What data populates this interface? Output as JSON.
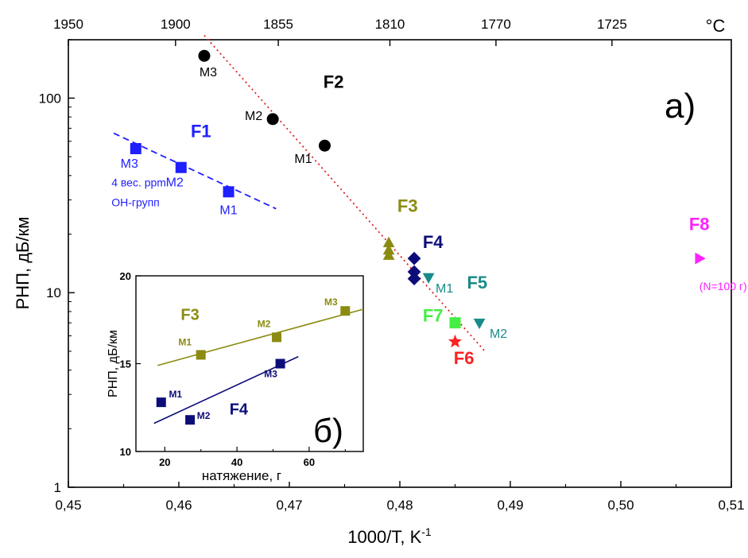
{
  "chart_data": {
    "type": "scatter",
    "panel_label": "а)",
    "xlabel": "1000/T, K",
    "xlabel_sup": "-1",
    "ylabel": "РНП, дБ/км",
    "xlim": [
      0.45,
      0.51
    ],
    "ylim": [
      1,
      200
    ],
    "yscale": "log",
    "x_ticks": [
      "0,45",
      "0,46",
      "0,47",
      "0,48",
      "0,49",
      "0,50",
      "0,51"
    ],
    "y_ticks": [
      "1",
      "10",
      "100"
    ],
    "top_axis": {
      "unit": "°C",
      "ticks": [
        {
          "label": "1950",
          "x": 0.45
        },
        {
          "label": "1900",
          "x": 0.4597
        },
        {
          "label": "1855",
          "x": 0.469
        },
        {
          "label": "1810",
          "x": 0.4791
        },
        {
          "label": "1770",
          "x": 0.4887
        },
        {
          "label": "1725",
          "x": 0.4992
        }
      ]
    },
    "series": [
      {
        "name": "F1",
        "marker": "square",
        "color": "#1f1fff",
        "points": [
          {
            "x": 0.4561,
            "y": 55,
            "label": "M3"
          },
          {
            "x": 0.4602,
            "y": 44,
            "label": "M2"
          },
          {
            "x": 0.4645,
            "y": 33,
            "label": "M1"
          }
        ]
      },
      {
        "name": "F2",
        "marker": "circle",
        "color": "#000000",
        "points": [
          {
            "x": 0.4623,
            "y": 165,
            "label": "M3"
          },
          {
            "x": 0.4685,
            "y": 78,
            "label": "M2"
          },
          {
            "x": 0.4732,
            "y": 57,
            "label": "M1"
          }
        ]
      },
      {
        "name": "F3",
        "marker": "triangle-up",
        "color": "#8b8b12",
        "points": [
          {
            "x": 0.479,
            "y": 18
          },
          {
            "x": 0.479,
            "y": 16.5
          },
          {
            "x": 0.479,
            "y": 15.5
          }
        ]
      },
      {
        "name": "F4",
        "marker": "diamond",
        "color": "#0d0d7a",
        "points": [
          {
            "x": 0.4813,
            "y": 15
          },
          {
            "x": 0.4813,
            "y": 12.8
          },
          {
            "x": 0.4813,
            "y": 11.8
          }
        ]
      },
      {
        "name": "F5",
        "marker": "triangle-down",
        "color": "#1a8a8a",
        "points": [
          {
            "x": 0.4826,
            "y": 12,
            "label": "M1"
          },
          {
            "x": 0.4872,
            "y": 7,
            "label": "M2"
          }
        ]
      },
      {
        "name": "F6",
        "marker": "star",
        "color": "#ff2020",
        "points": [
          {
            "x": 0.485,
            "y": 5.6
          }
        ]
      },
      {
        "name": "F7",
        "marker": "square",
        "color": "#44ee44",
        "points": [
          {
            "x": 0.485,
            "y": 7
          }
        ]
      },
      {
        "name": "F8",
        "marker": "triangle-right",
        "color": "#ff20ff",
        "points": [
          {
            "x": 0.5071,
            "y": 15
          }
        ]
      }
    ],
    "fit_lines": [
      {
        "name": "F2-fit",
        "style": "dotted",
        "color": "#dd2020",
        "from": {
          "x": 0.4623,
          "y": 210
        },
        "to": {
          "x": 0.4877,
          "y": 5.0
        }
      },
      {
        "name": "F1-fit",
        "style": "dashed",
        "color": "#1f1fff",
        "from": {
          "x": 0.4541,
          "y": 66
        },
        "to": {
          "x": 0.4688,
          "y": 27
        }
      }
    ],
    "series_labels": [
      {
        "text": "F1",
        "x": 0.462,
        "y": 63,
        "color": "#1f1fff"
      },
      {
        "text": "F2",
        "x": 0.474,
        "y": 113,
        "color": "#000000"
      },
      {
        "text": "F3",
        "x": 0.4807,
        "y": 26,
        "color": "#8b8b12"
      },
      {
        "text": "F4",
        "x": 0.483,
        "y": 17,
        "color": "#0d0d7a"
      },
      {
        "text": "F5",
        "x": 0.487,
        "y": 10.5,
        "color": "#1a8a8a"
      },
      {
        "text": "F6",
        "x": 0.4858,
        "y": 4.3,
        "color": "#ff2020"
      },
      {
        "text": "F7",
        "x": 0.483,
        "y": 7.1,
        "color": "#44ee44"
      },
      {
        "text": "F8",
        "x": 0.5071,
        "y": 21,
        "color": "#ff20ff"
      }
    ],
    "annotations": [
      {
        "text": "4 вес. ppm",
        "x": 0.4539,
        "y": 35.2,
        "color": "#1f1fff"
      },
      {
        "text": "ОН-групп",
        "x": 0.4539,
        "y": 27.8,
        "color": "#1f1fff"
      },
      {
        "text": "(N=100 г)",
        "x": 0.5071,
        "y": 10.3,
        "color": "#ff20ff"
      }
    ],
    "inset": {
      "type": "scatter",
      "panel_label": "б)",
      "xlabel": "натяжение, г",
      "ylabel": "РНП, дБ/км",
      "xlim": [
        12,
        75
      ],
      "ylim": [
        10,
        20
      ],
      "x_ticks": [
        "20",
        "40",
        "60"
      ],
      "y_ticks": [
        "10",
        "15",
        "20"
      ],
      "series": [
        {
          "name": "F3",
          "color": "#8b8b12",
          "points": [
            {
              "x": 30,
              "y": 15.5,
              "label": "M1"
            },
            {
              "x": 51,
              "y": 16.5,
              "label": "M2"
            },
            {
              "x": 70,
              "y": 18,
              "label": "M3"
            }
          ],
          "fit": {
            "from": {
              "x": 18,
              "y": 14.9
            },
            "to": {
              "x": 75,
              "y": 18.1
            }
          }
        },
        {
          "name": "F4",
          "color": "#0d0d7a",
          "points": [
            {
              "x": 19,
              "y": 12.8,
              "label": "M1"
            },
            {
              "x": 27,
              "y": 11.8,
              "label": "M2"
            },
            {
              "x": 52,
              "y": 15,
              "label": "M3"
            }
          ],
          "fit": {
            "from": {
              "x": 17,
              "y": 11.6
            },
            "to": {
              "x": 57,
              "y": 15.4
            }
          }
        }
      ],
      "series_labels": [
        {
          "text": "F3",
          "x": 27.0,
          "y": 17.5,
          "color": "#8b8b12"
        },
        {
          "text": "F4",
          "x": 40.5,
          "y": 12.1,
          "color": "#0d0d7a"
        }
      ]
    }
  }
}
